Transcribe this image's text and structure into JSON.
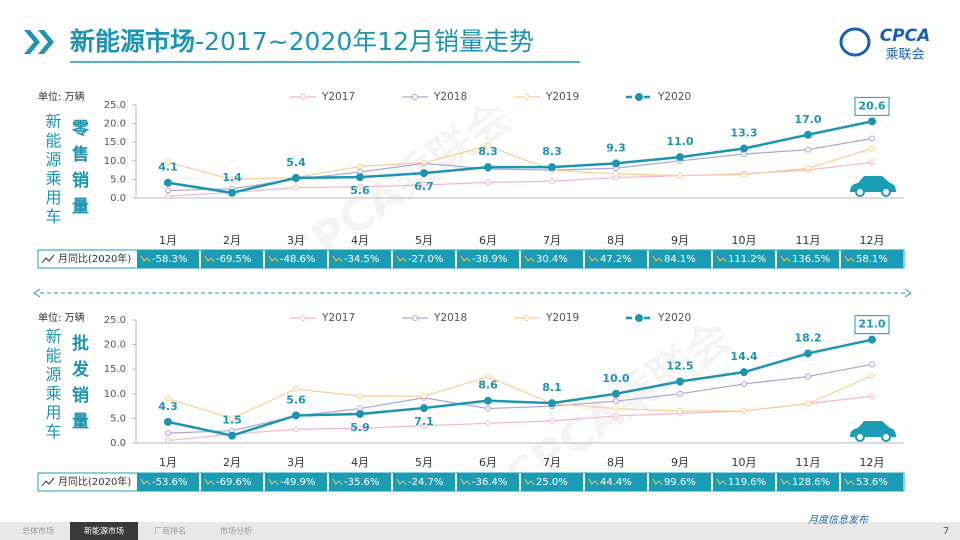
{
  "header": {
    "title_main": "新能源市场",
    "title_rest": "-2017~2020年12月销量走势",
    "logo": "CPCA",
    "logo_sub": "乘联会"
  },
  "watermark": "CPCA乘联会",
  "chart_data": [
    {
      "type": "line",
      "unit": "单位: 万辆",
      "side_label": "新能源乘用车",
      "metric": "零售销量",
      "categories": [
        "1月",
        "2月",
        "3月",
        "4月",
        "5月",
        "6月",
        "7月",
        "8月",
        "9月",
        "10月",
        "11月",
        "12月"
      ],
      "ylim": [
        0,
        25
      ],
      "yticks": [
        {
          "value": 0,
          "label": "0.0"
        },
        {
          "value": 5,
          "label": "5.0"
        },
        {
          "value": 10,
          "label": "10.0"
        },
        {
          "value": 15,
          "label": "15.0"
        },
        {
          "value": 20,
          "label": "20.0"
        },
        {
          "value": 25,
          "label": "25.0"
        }
      ],
      "grid": false,
      "series": [
        {
          "name": "Y2017",
          "color": "#f3b8c4",
          "values": [
            0.5,
            1.5,
            2.8,
            3.0,
            3.5,
            4.2,
            4.5,
            5.5,
            6.0,
            6.5,
            7.5,
            9.6
          ]
        },
        {
          "name": "Y2018",
          "color": "#a9a6d8",
          "values": [
            2.0,
            2.5,
            5.0,
            7.0,
            9.3,
            7.8,
            7.5,
            8.0,
            10.0,
            11.8,
            13.0,
            16.0
          ]
        },
        {
          "name": "Y2019",
          "color": "#f8cf90",
          "values": [
            9.6,
            5.0,
            5.5,
            8.5,
            9.5,
            14.0,
            7.5,
            6.5,
            6.0,
            6.3,
            8.0,
            13.3
          ]
        },
        {
          "name": "Y2020",
          "color": "#1e95b0",
          "values": [
            4.1,
            1.4,
            5.4,
            5.6,
            6.7,
            8.3,
            8.3,
            9.3,
            11.0,
            13.3,
            17.0,
            20.6
          ],
          "value_labels": [
            "4.1",
            "1.4",
            "5.4",
            "5.6",
            "6.7",
            "8.3",
            "8.3",
            "9.3",
            "11.0",
            "13.3",
            "17.0",
            "20.6"
          ]
        }
      ],
      "yoy_label": "月同比(2020年)",
      "yoy_values": [
        "-58.3%",
        "-69.5%",
        "-48.6%",
        "-34.5%",
        "-27.0%",
        "-38.9%",
        "30.4%",
        "47.2%",
        "84.1%",
        "111.2%",
        "136.5%",
        "58.1%"
      ]
    },
    {
      "type": "line",
      "unit": "单位: 万辆",
      "side_label": "新能源乘用车",
      "metric": "批发销量",
      "categories": [
        "1月",
        "2月",
        "3月",
        "4月",
        "5月",
        "6月",
        "7月",
        "8月",
        "9月",
        "10月",
        "11月",
        "12月"
      ],
      "ylim": [
        0,
        25
      ],
      "yticks": [
        {
          "value": 0,
          "label": "0.0"
        },
        {
          "value": 5,
          "label": "5.0"
        },
        {
          "value": 10,
          "label": "10.0"
        },
        {
          "value": 15,
          "label": "15.0"
        },
        {
          "value": 20,
          "label": "20.0"
        },
        {
          "value": 25,
          "label": "25.0"
        }
      ],
      "grid": false,
      "series": [
        {
          "name": "Y2017",
          "color": "#f3b8c4",
          "values": [
            0.5,
            1.8,
            2.8,
            3.0,
            3.5,
            4.0,
            4.5,
            5.5,
            6.0,
            6.5,
            8.0,
            9.5
          ]
        },
        {
          "name": "Y2018",
          "color": "#a9a6d8",
          "values": [
            2.0,
            2.5,
            5.5,
            7.0,
            9.2,
            7.0,
            7.5,
            8.5,
            10.0,
            12.0,
            13.5,
            16.0
          ]
        },
        {
          "name": "Y2019",
          "color": "#f8cf90",
          "values": [
            9.0,
            5.0,
            11.0,
            9.5,
            9.5,
            13.5,
            8.0,
            7.0,
            6.5,
            6.5,
            8.0,
            13.7
          ]
        },
        {
          "name": "Y2020",
          "color": "#1e95b0",
          "values": [
            4.3,
            1.5,
            5.6,
            5.9,
            7.1,
            8.6,
            8.1,
            10.0,
            12.5,
            14.4,
            18.2,
            21.0
          ],
          "value_labels": [
            "4.3",
            "1.5",
            "5.6",
            "5.9",
            "7.1",
            "8.6",
            "8.1",
            "10.0",
            "12.5",
            "14.4",
            "18.2",
            "21.0"
          ]
        }
      ],
      "yoy_label": "月同比(2020年)",
      "yoy_values": [
        "-53.6%",
        "-69.6%",
        "-49.9%",
        "-35.6%",
        "-24.7%",
        "-36.4%",
        "25.0%",
        "44.4%",
        "99.6%",
        "119.6%",
        "128.6%",
        "53.6%"
      ]
    }
  ],
  "footer": {
    "tabs": [
      "总体市场",
      "新能源市场",
      "厂商排名",
      "市场分析"
    ],
    "brand": "月度信息发布",
    "page": "7"
  }
}
